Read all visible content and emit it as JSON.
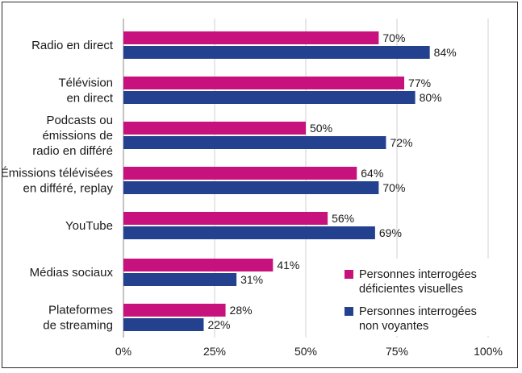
{
  "chart_data": {
    "type": "bar",
    "orientation": "horizontal",
    "categories": [
      [
        "Radio en direct"
      ],
      [
        "Télévision",
        "en direct"
      ],
      [
        "Podcasts ou",
        "émissions de",
        "radio en différé"
      ],
      [
        "Émissions télévisées",
        "en différé, replay"
      ],
      [
        "YouTube"
      ],
      [
        "Médias sociaux"
      ],
      [
        "Plateformes",
        "de streaming"
      ]
    ],
    "series": [
      {
        "name": "Personnes interrogées déficientes visuelles",
        "legend_lines": [
          "Personnes interrogées",
          "déficientes visuelles"
        ],
        "color": "#c7127e",
        "values": [
          70,
          77,
          50,
          64,
          56,
          41,
          28
        ],
        "labels": [
          "70%",
          "77%",
          "50%",
          "64%",
          "56%",
          "41%",
          "28%"
        ]
      },
      {
        "name": "Personnes interrogées non voyantes",
        "legend_lines": [
          "Personnes interrogées",
          "non voyantes"
        ],
        "color": "#24418f",
        "values": [
          84,
          80,
          72,
          70,
          69,
          31,
          22
        ],
        "labels": [
          "84%",
          "80%",
          "72%",
          "70%",
          "69%",
          "31%",
          "22%"
        ]
      }
    ],
    "xlim": [
      0,
      100
    ],
    "xticks": [
      0,
      25,
      50,
      75,
      100
    ],
    "xtick_labels": [
      "0%",
      "25%",
      "50%",
      "75%",
      "100%"
    ],
    "grid": "vertical",
    "legend_position": "bottom-right"
  }
}
